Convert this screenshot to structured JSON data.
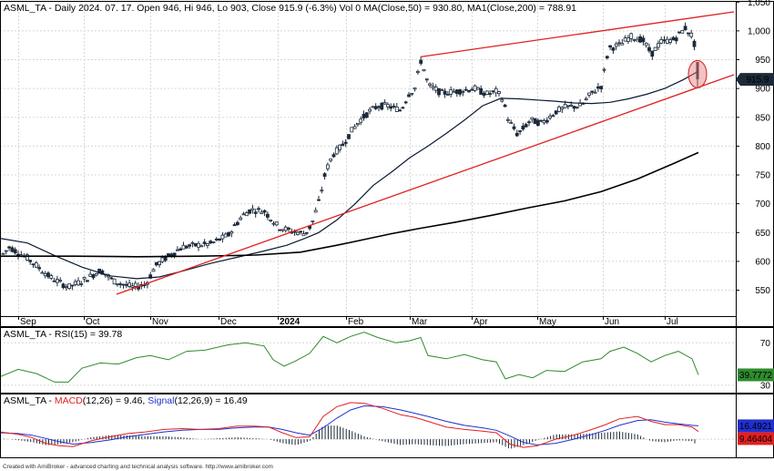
{
  "chart_data": [
    {
      "type": "candlestick",
      "panel": "price",
      "title": "ASML_TA - Daily 2024. 07. 17. Open 946, Hi 946, Lo 903, Close 915.9 (-6.3%) Vol 0 MA(Close,50) = 930.80, MA1(Close,200) = 788.91",
      "ylim": [
        505,
        1052
      ],
      "yticks": [
        550,
        600,
        650,
        700,
        750,
        800,
        850,
        900,
        950,
        1000,
        1050
      ],
      "ytick_labels": [
        "550",
        "600",
        "650",
        "700",
        "750",
        "800",
        "850",
        "900",
        "950",
        "1,000",
        "1,050"
      ],
      "x_labels": [
        "Sep",
        "Oct",
        "Nov",
        "Dec",
        "2024",
        "Feb",
        "Mar",
        "Apr",
        "May",
        "Jun",
        "Jul"
      ],
      "last_price_label": "915.9",
      "last_bar": {
        "open": 946,
        "high": 946,
        "low": 903,
        "close": 915.9
      },
      "ma50_points": [
        [
          0,
          640
        ],
        [
          30,
          632
        ],
        [
          60,
          610
        ],
        [
          90,
          590
        ],
        [
          120,
          575
        ],
        [
          150,
          570
        ],
        [
          175,
          573
        ],
        [
          200,
          583
        ],
        [
          230,
          596
        ],
        [
          260,
          607
        ],
        [
          290,
          618
        ],
        [
          315,
          628
        ],
        [
          335,
          640
        ],
        [
          350,
          650
        ],
        [
          370,
          672
        ],
        [
          390,
          700
        ],
        [
          410,
          732
        ],
        [
          430,
          755
        ],
        [
          450,
          780
        ],
        [
          470,
          800
        ],
        [
          490,
          822
        ],
        [
          510,
          845
        ],
        [
          530,
          870
        ],
        [
          550,
          883
        ],
        [
          570,
          882
        ],
        [
          590,
          880
        ],
        [
          610,
          878
        ],
        [
          630,
          875
        ],
        [
          650,
          874
        ],
        [
          670,
          876
        ],
        [
          690,
          882
        ],
        [
          710,
          890
        ],
        [
          730,
          900
        ],
        [
          750,
          915
        ],
        [
          767,
          930
        ]
      ],
      "ma200_points": [
        [
          0,
          609
        ],
        [
          80,
          609
        ],
        [
          150,
          608
        ],
        [
          220,
          609
        ],
        [
          280,
          611
        ],
        [
          330,
          616
        ],
        [
          370,
          628
        ],
        [
          400,
          638
        ],
        [
          430,
          648
        ],
        [
          460,
          657
        ],
        [
          500,
          668
        ],
        [
          540,
          680
        ],
        [
          580,
          693
        ],
        [
          620,
          705
        ],
        [
          660,
          721
        ],
        [
          700,
          743
        ],
        [
          740,
          770
        ],
        [
          767,
          789
        ]
      ],
      "trendlines": [
        {
          "from": [
            128,
            543
          ],
          "to": [
            806,
            924
          ]
        },
        {
          "from": [
            462,
            955
          ],
          "to": [
            806,
            1033
          ]
        }
      ],
      "highlight_circle": {
        "x": 766,
        "y": 925
      }
    },
    {
      "type": "line",
      "panel": "rsi",
      "title": "ASML_TA - RSI(15) = 39.78",
      "ylim": [
        23,
        84
      ],
      "yticks": [
        30,
        70
      ],
      "ytick_labels": [
        "30",
        "70"
      ],
      "last_value_label": "39.7772",
      "series": [
        {
          "name": "RSI(15)",
          "color": "#2e8b2e",
          "points": [
            [
              0,
              38
            ],
            [
              20,
              45
            ],
            [
              40,
              41
            ],
            [
              60,
              33
            ],
            [
              75,
              33
            ],
            [
              90,
              46
            ],
            [
              110,
              51
            ],
            [
              130,
              50
            ],
            [
              150,
              56
            ],
            [
              165,
              58
            ],
            [
              185,
              54
            ],
            [
              205,
              62
            ],
            [
              225,
              63
            ],
            [
              250,
              68
            ],
            [
              270,
              70
            ],
            [
              290,
              67
            ],
            [
              300,
              54
            ],
            [
              312,
              48
            ],
            [
              325,
              53
            ],
            [
              340,
              60
            ],
            [
              355,
              76
            ],
            [
              370,
              70
            ],
            [
              385,
              76
            ],
            [
              400,
              80
            ],
            [
              415,
              75
            ],
            [
              435,
              70
            ],
            [
              450,
              72
            ],
            [
              462,
              75
            ],
            [
              470,
              58
            ],
            [
              490,
              55
            ],
            [
              510,
              59
            ],
            [
              530,
              54
            ],
            [
              545,
              52
            ],
            [
              555,
              36
            ],
            [
              570,
              40
            ],
            [
              585,
              37
            ],
            [
              600,
              44
            ],
            [
              620,
              43
            ],
            [
              640,
              52
            ],
            [
              660,
              55
            ],
            [
              670,
              62
            ],
            [
              685,
              66
            ],
            [
              700,
              60
            ],
            [
              715,
              52
            ],
            [
              730,
              58
            ],
            [
              745,
              62
            ],
            [
              760,
              55
            ],
            [
              767,
              39.78
            ]
          ]
        }
      ]
    },
    {
      "type": "line",
      "panel": "macd",
      "title": "ASML_TA - MACD(12,26) = 9.46, Signal(12,26,9) = 16.49",
      "ylim": [
        -20,
        55
      ],
      "yticks": [
        0
      ],
      "ytick_labels": [
        "0"
      ],
      "last_signal_label": "16.4921",
      "last_macd_label": "9.46404",
      "series": [
        {
          "name": "MACD(12,26)",
          "color": "#e02020",
          "points": [
            [
              0,
              9
            ],
            [
              20,
              6
            ],
            [
              35,
              2
            ],
            [
              50,
              -5
            ],
            [
              65,
              -8
            ],
            [
              80,
              -9
            ],
            [
              100,
              -2
            ],
            [
              120,
              3
            ],
            [
              140,
              7
            ],
            [
              160,
              9
            ],
            [
              180,
              12
            ],
            [
              200,
              13
            ],
            [
              220,
              12
            ],
            [
              240,
              13
            ],
            [
              260,
              16
            ],
            [
              280,
              16
            ],
            [
              295,
              15
            ],
            [
              310,
              8
            ],
            [
              325,
              2
            ],
            [
              340,
              3
            ],
            [
              355,
              28
            ],
            [
              370,
              40
            ],
            [
              385,
              45
            ],
            [
              400,
              44
            ],
            [
              420,
              38
            ],
            [
              440,
              30
            ],
            [
              455,
              27
            ],
            [
              470,
              22
            ],
            [
              490,
              15
            ],
            [
              510,
              12
            ],
            [
              530,
              10
            ],
            [
              545,
              8
            ],
            [
              560,
              -6
            ],
            [
              575,
              -10
            ],
            [
              590,
              -8
            ],
            [
              610,
              0
            ],
            [
              630,
              5
            ],
            [
              650,
              12
            ],
            [
              665,
              18
            ],
            [
              680,
              25
            ],
            [
              700,
              28
            ],
            [
              715,
              22
            ],
            [
              730,
              18
            ],
            [
              745,
              18
            ],
            [
              760,
              15
            ],
            [
              767,
              9.46
            ]
          ]
        },
        {
          "name": "Signal(12,26,9)",
          "color": "#2030d0",
          "points": [
            [
              0,
              8
            ],
            [
              20,
              7
            ],
            [
              35,
              5
            ],
            [
              50,
              1
            ],
            [
              65,
              -3
            ],
            [
              80,
              -6
            ],
            [
              100,
              -4
            ],
            [
              120,
              -1
            ],
            [
              140,
              3
            ],
            [
              160,
              6
            ],
            [
              180,
              9
            ],
            [
              200,
              11
            ],
            [
              220,
              12
            ],
            [
              240,
              12
            ],
            [
              260,
              14
            ],
            [
              280,
              15
            ],
            [
              295,
              15
            ],
            [
              310,
              12
            ],
            [
              325,
              8
            ],
            [
              340,
              5
            ],
            [
              355,
              14
            ],
            [
              370,
              26
            ],
            [
              385,
              36
            ],
            [
              400,
              41
            ],
            [
              420,
              40
            ],
            [
              440,
              36
            ],
            [
              455,
              32
            ],
            [
              470,
              28
            ],
            [
              490,
              22
            ],
            [
              510,
              17
            ],
            [
              530,
              14
            ],
            [
              545,
              11
            ],
            [
              560,
              4
            ],
            [
              575,
              -4
            ],
            [
              590,
              -7
            ],
            [
              610,
              -5
            ],
            [
              630,
              0
            ],
            [
              650,
              6
            ],
            [
              665,
              11
            ],
            [
              680,
              17
            ],
            [
              700,
              23
            ],
            [
              715,
              24
            ],
            [
              730,
              21
            ],
            [
              745,
              19
            ],
            [
              760,
              17
            ],
            [
              767,
              16.49
            ]
          ]
        }
      ]
    }
  ],
  "footer": "Created with AmiBroker - advanced charting and technical analysis software. http://www.amibroker.com"
}
